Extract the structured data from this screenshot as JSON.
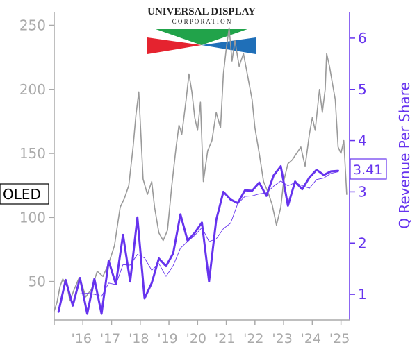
{
  "logo": {
    "line1": "UNIVERSAL DISPLAY",
    "line2": "C O R P O R A T I O N",
    "colors": {
      "green": "#21a34a",
      "red": "#e5232f",
      "blue": "#1f6fb8"
    }
  },
  "ticker_badge": "OLED",
  "last_value_badge": "3.41",
  "colors": {
    "price": "#9a9a9a",
    "revenue": "#6633ee",
    "left_axis": "#aaaaaa",
    "right_axis": "#6633ee",
    "x_axis": "#aaaaaa"
  },
  "chart_data": {
    "type": "line",
    "title": "",
    "x_ticks": [
      "'16",
      "'17",
      "'18",
      "'19",
      "'20",
      "'21",
      "'22",
      "'23",
      "'24",
      "'25"
    ],
    "xlim": [
      2015.0,
      2025.3
    ],
    "left_axis": {
      "label": "",
      "ticks": [
        50,
        100,
        150,
        200,
        250
      ],
      "ylim": [
        20,
        260
      ]
    },
    "right_axis": {
      "label": "Q Revenue Per Share",
      "ticks": [
        1,
        2,
        3,
        4,
        5,
        6
      ],
      "ylim": [
        0.5,
        6.5
      ]
    },
    "series": [
      {
        "axis": "left",
        "style": "thin-gray",
        "points": [
          [
            2015.0,
            27
          ],
          [
            2015.1,
            34
          ],
          [
            2015.2,
            46
          ],
          [
            2015.3,
            52
          ],
          [
            2015.45,
            46
          ],
          [
            2015.55,
            35
          ],
          [
            2015.7,
            44
          ],
          [
            2015.85,
            52
          ],
          [
            2015.95,
            49
          ],
          [
            2016.1,
            38
          ],
          [
            2016.3,
            44
          ],
          [
            2016.5,
            58
          ],
          [
            2016.7,
            54
          ],
          [
            2016.9,
            64
          ],
          [
            2017.1,
            78
          ],
          [
            2017.3,
            108
          ],
          [
            2017.45,
            115
          ],
          [
            2017.6,
            125
          ],
          [
            2017.75,
            155
          ],
          [
            2017.85,
            180
          ],
          [
            2017.95,
            198
          ],
          [
            2018.1,
            130
          ],
          [
            2018.25,
            118
          ],
          [
            2018.4,
            128
          ],
          [
            2018.5,
            108
          ],
          [
            2018.65,
            88
          ],
          [
            2018.8,
            82
          ],
          [
            2018.95,
            90
          ],
          [
            2019.1,
            125
          ],
          [
            2019.25,
            155
          ],
          [
            2019.35,
            172
          ],
          [
            2019.45,
            165
          ],
          [
            2019.6,
            192
          ],
          [
            2019.7,
            212
          ],
          [
            2019.8,
            198
          ],
          [
            2019.9,
            178
          ],
          [
            2020.0,
            168
          ],
          [
            2020.1,
            190
          ],
          [
            2020.2,
            128
          ],
          [
            2020.35,
            152
          ],
          [
            2020.5,
            160
          ],
          [
            2020.65,
            182
          ],
          [
            2020.8,
            170
          ],
          [
            2020.9,
            212
          ],
          [
            2021.0,
            232
          ],
          [
            2021.1,
            248
          ],
          [
            2021.2,
            222
          ],
          [
            2021.3,
            238
          ],
          [
            2021.45,
            218
          ],
          [
            2021.6,
            228
          ],
          [
            2021.75,
            210
          ],
          [
            2021.9,
            192
          ],
          [
            2022.0,
            170
          ],
          [
            2022.15,
            150
          ],
          [
            2022.3,
            128
          ],
          [
            2022.45,
            120
          ],
          [
            2022.6,
            110
          ],
          [
            2022.75,
            94
          ],
          [
            2022.9,
            108
          ],
          [
            2023.0,
            128
          ],
          [
            2023.15,
            142
          ],
          [
            2023.3,
            145
          ],
          [
            2023.45,
            150
          ],
          [
            2023.6,
            155
          ],
          [
            2023.75,
            140
          ],
          [
            2023.9,
            165
          ],
          [
            2024.0,
            178
          ],
          [
            2024.1,
            168
          ],
          [
            2024.25,
            200
          ],
          [
            2024.35,
            182
          ],
          [
            2024.45,
            200
          ],
          [
            2024.5,
            228
          ],
          [
            2024.6,
            218
          ],
          [
            2024.7,
            205
          ],
          [
            2024.8,
            192
          ],
          [
            2024.9,
            155
          ],
          [
            2025.0,
            150
          ],
          [
            2025.1,
            160
          ],
          [
            2025.2,
            118
          ]
        ]
      },
      {
        "axis": "right",
        "style": "bold-purple",
        "points": [
          [
            2015.15,
            0.66
          ],
          [
            2015.4,
            1.28
          ],
          [
            2015.65,
            0.78
          ],
          [
            2015.9,
            1.32
          ],
          [
            2016.15,
            0.62
          ],
          [
            2016.4,
            1.3
          ],
          [
            2016.65,
            0.62
          ],
          [
            2016.9,
            1.65
          ],
          [
            2017.15,
            1.2
          ],
          [
            2017.4,
            2.16
          ],
          [
            2017.65,
            1.25
          ],
          [
            2017.9,
            2.5
          ],
          [
            2018.15,
            0.92
          ],
          [
            2018.4,
            1.22
          ],
          [
            2018.65,
            1.7
          ],
          [
            2018.9,
            1.55
          ],
          [
            2019.15,
            1.8
          ],
          [
            2019.4,
            2.56
          ],
          [
            2019.65,
            2.05
          ],
          [
            2019.9,
            2.2
          ],
          [
            2020.15,
            2.4
          ],
          [
            2020.4,
            1.25
          ],
          [
            2020.65,
            2.45
          ],
          [
            2020.9,
            3.0
          ],
          [
            2021.15,
            2.85
          ],
          [
            2021.4,
            2.78
          ],
          [
            2021.65,
            3.03
          ],
          [
            2021.9,
            3.02
          ],
          [
            2022.15,
            3.18
          ],
          [
            2022.4,
            2.92
          ],
          [
            2022.65,
            3.32
          ],
          [
            2022.9,
            3.5
          ],
          [
            2023.15,
            2.73
          ],
          [
            2023.4,
            3.2
          ],
          [
            2023.65,
            3.05
          ],
          [
            2023.9,
            3.28
          ],
          [
            2024.15,
            3.43
          ],
          [
            2024.4,
            3.33
          ],
          [
            2024.65,
            3.4
          ],
          [
            2024.9,
            3.41
          ]
        ]
      },
      {
        "axis": "right",
        "style": "thin-purple",
        "points": [
          [
            2015.9,
            1.01
          ],
          [
            2016.15,
            1.02
          ],
          [
            2016.4,
            1.0
          ],
          [
            2016.65,
            0.96
          ],
          [
            2016.9,
            1.22
          ],
          [
            2017.15,
            1.19
          ],
          [
            2017.4,
            1.58
          ],
          [
            2017.65,
            1.57
          ],
          [
            2017.9,
            1.78
          ],
          [
            2018.15,
            1.71
          ],
          [
            2018.4,
            1.47
          ],
          [
            2018.65,
            1.6
          ],
          [
            2018.9,
            1.35
          ],
          [
            2019.15,
            1.56
          ],
          [
            2019.4,
            1.9
          ],
          [
            2019.65,
            2.03
          ],
          [
            2019.9,
            2.15
          ],
          [
            2020.15,
            2.3
          ],
          [
            2020.4,
            2.03
          ],
          [
            2020.65,
            2.08
          ],
          [
            2020.9,
            2.28
          ],
          [
            2021.15,
            2.39
          ],
          [
            2021.4,
            2.77
          ],
          [
            2021.65,
            2.91
          ],
          [
            2021.9,
            2.92
          ],
          [
            2022.15,
            2.96
          ],
          [
            2022.4,
            2.98
          ],
          [
            2022.65,
            3.11
          ],
          [
            2022.9,
            3.21
          ],
          [
            2023.15,
            3.12
          ],
          [
            2023.4,
            3.18
          ],
          [
            2023.65,
            3.12
          ],
          [
            2023.9,
            3.07
          ],
          [
            2024.15,
            3.24
          ],
          [
            2024.4,
            3.27
          ],
          [
            2024.65,
            3.36
          ],
          [
            2024.9,
            3.39
          ]
        ]
      }
    ]
  }
}
